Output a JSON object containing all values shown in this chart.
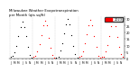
{
  "title": "Milwaukee Weather Evapotranspiration\nper Month (qts sq/ft)",
  "title_fontsize": 2.8,
  "months_short": [
    "J",
    "F",
    "M",
    "A",
    "M",
    "J",
    "J",
    "A",
    "S",
    "O",
    "N",
    "D",
    "J",
    "F",
    "M",
    "A",
    "M",
    "J",
    "J",
    "A",
    "S",
    "O",
    "N",
    "D",
    "J",
    "F",
    "M",
    "A",
    "M",
    "J",
    "J",
    "A",
    "S",
    "O",
    "N",
    "D",
    "J",
    "F",
    "M",
    "A",
    "M",
    "J",
    "J",
    "A",
    "S",
    "O",
    "N",
    "D",
    "J",
    "F",
    "M",
    "A",
    "M",
    "J",
    "J",
    "A",
    "S",
    "O",
    "N",
    "D"
  ],
  "evap_data_flat": [
    1.5,
    2.0,
    5.0,
    10.0,
    17.0,
    24.0,
    28.0,
    24.0,
    17.0,
    9.0,
    3.0,
    1.0,
    1.2,
    2.2,
    5.5,
    11.0,
    18.0,
    25.0,
    29.0,
    25.0,
    16.0,
    8.5,
    2.8,
    0.9,
    1.0,
    1.8,
    6.0,
    12.0,
    19.0,
    26.0,
    30.0,
    26.0,
    18.0,
    9.5,
    3.2,
    1.1,
    1.3,
    2.5,
    5.8,
    11.5,
    18.5,
    25.5,
    29.5,
    25.5,
    17.0,
    8.8,
    2.5,
    0.8,
    1.8,
    1.5,
    5.5,
    10.5,
    17.5,
    24.5,
    28.5,
    24.5,
    16.5,
    9.2,
    3.5,
    1.2
  ],
  "colors_flat": [
    "#000000",
    "#000000",
    "#000000",
    "#000000",
    "#000000",
    "#000000",
    "#000000",
    "#000000",
    "#000000",
    "#000000",
    "#000000",
    "#000000",
    "#ff0000",
    "#ff0000",
    "#ff0000",
    "#ff0000",
    "#ff0000",
    "#ff0000",
    "#ff0000",
    "#ff0000",
    "#ff0000",
    "#ff0000",
    "#ff0000",
    "#ff0000",
    "#000000",
    "#000000",
    "#000000",
    "#000000",
    "#000000",
    "#000000",
    "#000000",
    "#000000",
    "#000000",
    "#000000",
    "#000000",
    "#000000",
    "#ff0000",
    "#ff0000",
    "#ff0000",
    "#ff0000",
    "#ff0000",
    "#ff0000",
    "#ff0000",
    "#ff0000",
    "#ff0000",
    "#ff0000",
    "#ff0000",
    "#ff0000",
    "#ff0000",
    "#ff0000",
    "#ff0000",
    "#ff0000",
    "#ff0000",
    "#ff0000",
    "#ff0000",
    "#ff0000",
    "#ff0000",
    "#ff0000",
    "#ff0000",
    "#ff0000"
  ],
  "n_years": 5,
  "n_months": 12,
  "ylim": [
    0,
    32
  ],
  "yticks": [
    0,
    5,
    10,
    15,
    20,
    25,
    30
  ],
  "ytick_labels": [
    "0",
    "5",
    "10",
    "15",
    "20",
    "25",
    "30"
  ],
  "ylabel_fontsize": 2.5,
  "xlabel_fontsize": 2.2,
  "background_color": "#ffffff",
  "grid_color": "#cccccc",
  "marker_size": 0.8,
  "legend_label": "2023",
  "legend_color": "#ff0000",
  "legend_fontsize": 2.5
}
